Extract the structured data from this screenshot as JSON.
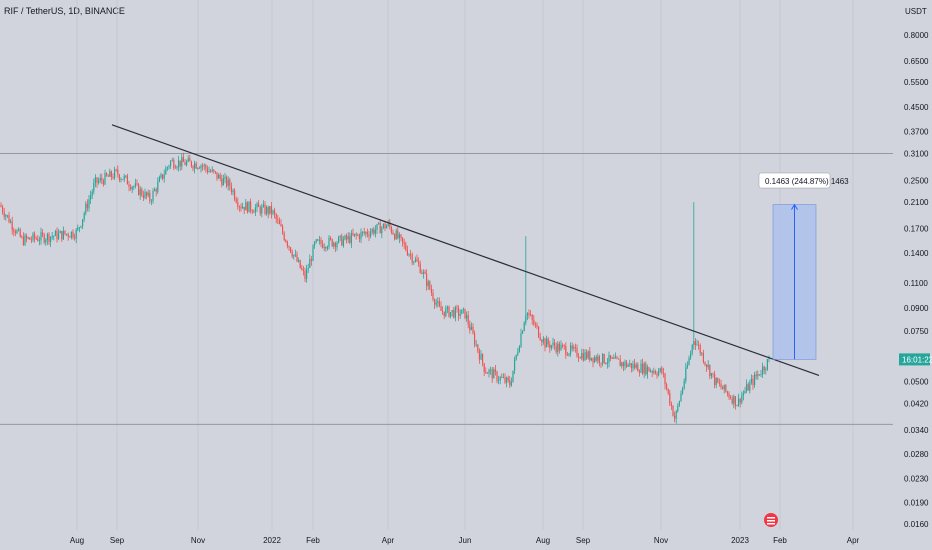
{
  "header": {
    "symbol_title": "RIF / TetherUS, 1D, BINANCE"
  },
  "price_axis": {
    "currency": "USDT",
    "current_price_badge": "16:01:22"
  },
  "measure_tool": {
    "label": "0.1463 (244.87%) 1463"
  },
  "colors": {
    "background": "#d1d4dc",
    "up_candle": "#26a69a",
    "down_candle": "#ef5350",
    "trendline": "#2a2e39",
    "measure_fill": "#a8bff0",
    "measure_line": "#2962ff",
    "badge": "#26a69a",
    "grid": "#c5c8d0"
  },
  "chart_data": {
    "type": "candlestick",
    "title": "RIF / TetherUS, 1D, BINANCE",
    "y_scale": "log",
    "ylim": [
      0.015,
      0.85
    ],
    "y_ticks": [
      0.8,
      0.65,
      0.55,
      0.45,
      0.37,
      0.31,
      0.25,
      0.21,
      0.17,
      0.14,
      0.11,
      0.09,
      0.075,
      0.06,
      0.05,
      0.042,
      0.034,
      0.028,
      0.023,
      0.019,
      0.016
    ],
    "x_tick_labels": [
      "Aug",
      "Sep",
      "Nov",
      "2022",
      "Feb",
      "Apr",
      "Jun",
      "Aug",
      "Sep",
      "Nov",
      "2023",
      "Feb",
      "Apr"
    ],
    "price_path": [
      {
        "t": "Jul 2021",
        "price": 0.205
      },
      {
        "t": "mid Jul 2021",
        "price": 0.155
      },
      {
        "t": "Aug 2021",
        "price": 0.165
      },
      {
        "t": "late Aug 2021",
        "price": 0.245
      },
      {
        "t": "Sep 2021",
        "price": 0.265
      },
      {
        "t": "late Sep 2021",
        "price": 0.215
      },
      {
        "t": "Oct 2021",
        "price": 0.29
      },
      {
        "t": "Nov 2021",
        "price": 0.285
      },
      {
        "t": "late Nov 2021",
        "price": 0.24
      },
      {
        "t": "Dec 2021",
        "price": 0.205
      },
      {
        "t": "2022",
        "price": 0.195
      },
      {
        "t": "mid Jan 2022",
        "price": 0.115
      },
      {
        "t": "Feb 2022",
        "price": 0.15
      },
      {
        "t": "Mar 2022",
        "price": 0.155
      },
      {
        "t": "Apr 2022",
        "price": 0.175
      },
      {
        "t": "May 2022",
        "price": 0.125
      },
      {
        "t": "mid May 2022",
        "price": 0.088
      },
      {
        "t": "Jun 2022",
        "price": 0.086
      },
      {
        "t": "mid Jun 2022",
        "price": 0.055
      },
      {
        "t": "early Jul 2022",
        "price": 0.049
      },
      {
        "t": "late Jul 2022",
        "price": 0.088
      },
      {
        "t": "Aug 2022",
        "price": 0.068
      },
      {
        "t": "Sep 2022",
        "price": 0.062
      },
      {
        "t": "Oct 2022",
        "price": 0.056
      },
      {
        "t": "early Nov 2022",
        "price": 0.054
      },
      {
        "t": "mid Nov 2022",
        "price": 0.037
      },
      {
        "t": "late Nov 2022",
        "price": 0.071
      },
      {
        "t": "Dec 2022",
        "price": 0.05
      },
      {
        "t": "late Dec 2022",
        "price": 0.042
      },
      {
        "t": "2023",
        "price": 0.044
      },
      {
        "t": "mid Jan 2023",
        "price": 0.06
      }
    ],
    "spikes": [
      {
        "t": "late Jul 2022",
        "high": 0.16
      },
      {
        "t": "Oct 2022",
        "high": 0.093
      },
      {
        "t": "late Nov 2022",
        "high": 0.21
      }
    ],
    "trendline": [
      {
        "t": "late Jul 2021",
        "price": 0.39
      },
      {
        "t": "late Feb 2023",
        "price": 0.0525
      }
    ],
    "horizontal_levels": [
      0.31,
      0.0355
    ],
    "measurement": {
      "from_price": 0.0597,
      "to_price": 0.206,
      "change": 0.1463,
      "percent": 244.87,
      "bars": 1463
    }
  }
}
